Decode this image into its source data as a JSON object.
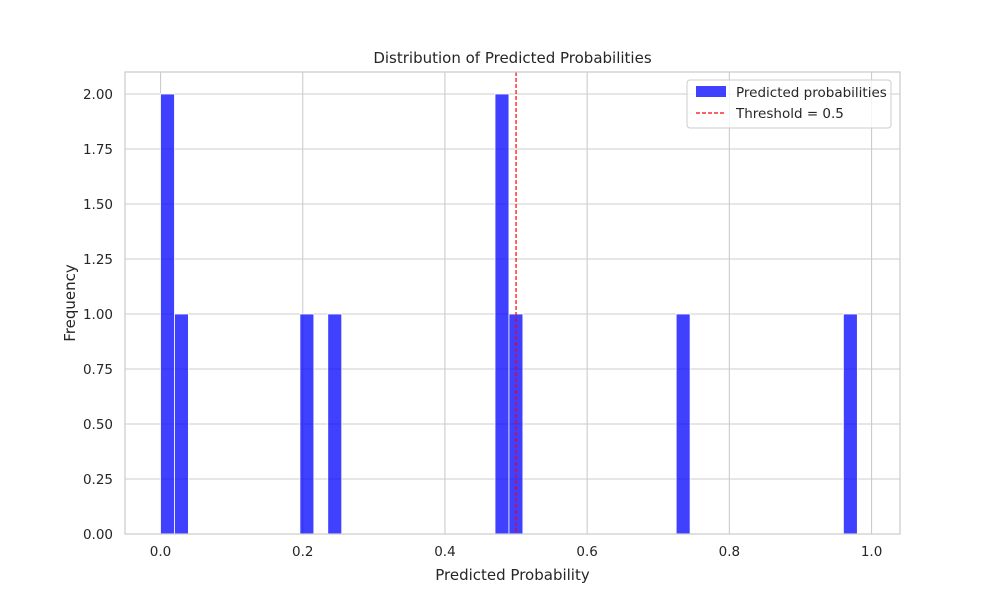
{
  "chart_data": {
    "type": "histogram",
    "title": "Distribution of Predicted Probabilities",
    "xlabel": "Predicted Probability",
    "ylabel": "Frequency",
    "xlim": [
      -0.05,
      1.04
    ],
    "ylim": [
      0,
      2.1
    ],
    "xticks": [
      0.0,
      0.2,
      0.4,
      0.6,
      0.8,
      1.0
    ],
    "xtick_labels": [
      "0.0",
      "0.2",
      "0.4",
      "0.6",
      "0.8",
      "1.0"
    ],
    "yticks": [
      0,
      0.25,
      0.5,
      0.75,
      1.0,
      1.25,
      1.5,
      1.75,
      2.0
    ],
    "ytick_labels": [
      "0.00",
      "0.25",
      "0.50",
      "0.75",
      "1.00",
      "1.25",
      "1.50",
      "1.75",
      "2.00"
    ],
    "grid": true,
    "legend_position": "top-right",
    "bin_range": [
      0.0,
      0.98
    ],
    "bins": [
      {
        "start": 0.0,
        "end": 0.0196,
        "count": 2
      },
      {
        "start": 0.0196,
        "end": 0.0392,
        "count": 1
      },
      {
        "start": 0.196,
        "end": 0.2156,
        "count": 1
      },
      {
        "start": 0.2352,
        "end": 0.2548,
        "count": 1
      },
      {
        "start": 0.4704,
        "end": 0.49,
        "count": 2
      },
      {
        "start": 0.49,
        "end": 0.5096,
        "count": 1
      },
      {
        "start": 0.7252,
        "end": 0.7448,
        "count": 1
      },
      {
        "start": 0.9604,
        "end": 0.98,
        "count": 1
      }
    ],
    "series": [
      {
        "name": "Predicted probabilities",
        "color": "#0000ff",
        "opacity": 0.75
      }
    ],
    "threshold": {
      "value": 0.5,
      "label": "Threshold = 0.5",
      "color": "#ff0000"
    }
  }
}
